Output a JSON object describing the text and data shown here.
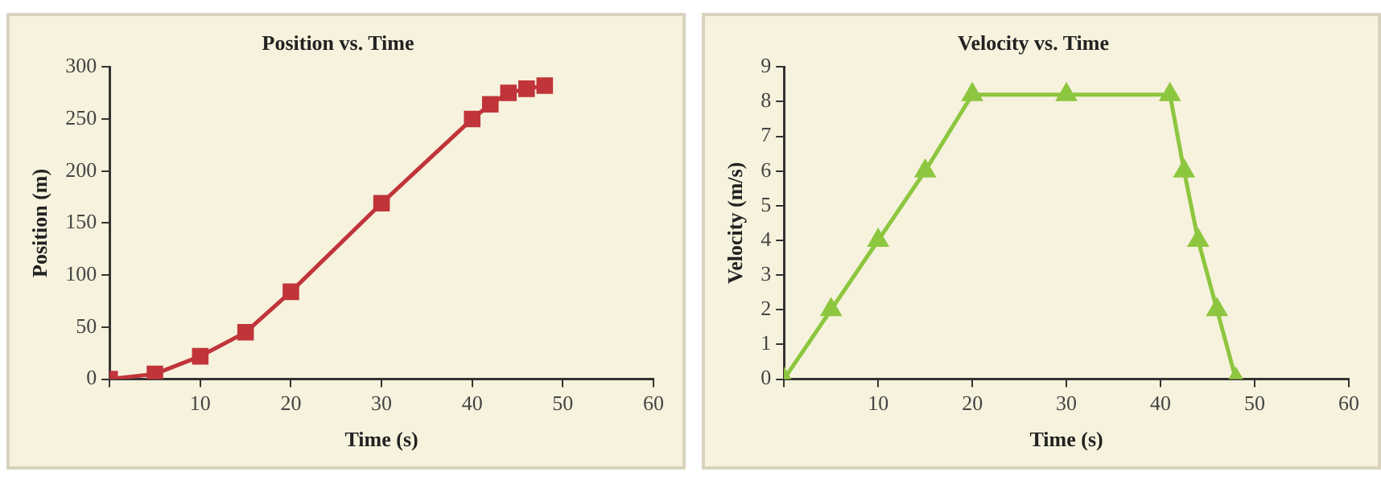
{
  "chart_data": [
    {
      "type": "line",
      "title": "Position vs. Time",
      "xlabel": "Time (s)",
      "ylabel": "Position (m)",
      "x": [
        0,
        5,
        10,
        15,
        20,
        30,
        40,
        42,
        44,
        46,
        48
      ],
      "series": [
        {
          "color": "#c0343a",
          "values": [
            0,
            5,
            22,
            45,
            84,
            169,
            250,
            264,
            275,
            279,
            282
          ]
        }
      ],
      "xlim": [
        0,
        60
      ],
      "ylim": [
        0,
        300
      ],
      "xticks": [
        {
          "value": 0,
          "label": null
        },
        10,
        20,
        30,
        40,
        50,
        60
      ],
      "yticks": [
        0,
        50,
        100,
        150,
        200,
        250,
        300
      ],
      "grid": false,
      "legend": false,
      "marker": "square",
      "line_style": "solid"
    },
    {
      "type": "line",
      "title": "Velocity vs. Time",
      "xlabel": "Time (s)",
      "ylabel": "Velocity (m/s)",
      "x": [
        0,
        5,
        10,
        15,
        20,
        30,
        41,
        42.5,
        44,
        46,
        48
      ],
      "series": [
        {
          "color": "#8dc63f",
          "values": [
            0,
            2,
            4,
            6,
            8.2,
            8.2,
            8.2,
            6,
            4,
            2,
            0
          ]
        }
      ],
      "xlim": [
        0,
        60
      ],
      "ylim": [
        0,
        9
      ],
      "xticks": [
        {
          "value": 0,
          "label": null
        },
        10,
        20,
        30,
        40,
        50,
        60
      ],
      "yticks": [
        0,
        1,
        2,
        3,
        4,
        5,
        6,
        7,
        8,
        9
      ],
      "grid": false,
      "legend": false,
      "marker": "triangle",
      "line_style": "solid"
    }
  ]
}
